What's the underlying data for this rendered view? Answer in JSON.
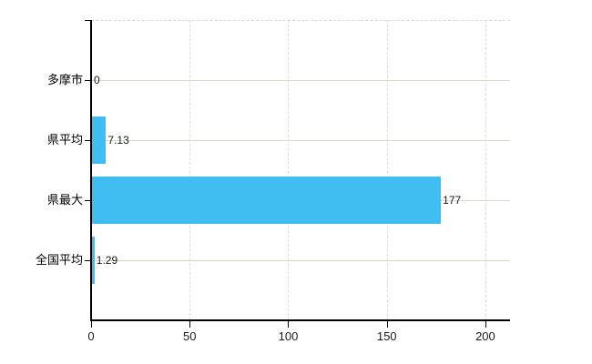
{
  "chart_data": {
    "type": "bar",
    "orientation": "horizontal",
    "title": "",
    "xlabel": "",
    "ylabel": "",
    "categories": [
      "多摩市",
      "県平均",
      "県最大",
      "全国平均"
    ],
    "values": [
      0,
      7.13,
      177,
      1.29
    ],
    "value_labels": [
      "0",
      "7.13",
      "177",
      "1.29"
    ],
    "x_ticks": [
      0,
      50,
      100,
      150,
      200
    ],
    "x_tick_labels": [
      "0",
      "50",
      "100",
      "150",
      "200"
    ],
    "xlim": [
      0,
      212.5
    ],
    "grid": true,
    "legend": false,
    "bar_color": "#41bef1",
    "axis_color": "#000000",
    "horizontal_grid_color": "#d6dbd2",
    "vertical_grid_color": "#ded9de",
    "text_color": "#000000",
    "background_color": "#ffffff"
  }
}
